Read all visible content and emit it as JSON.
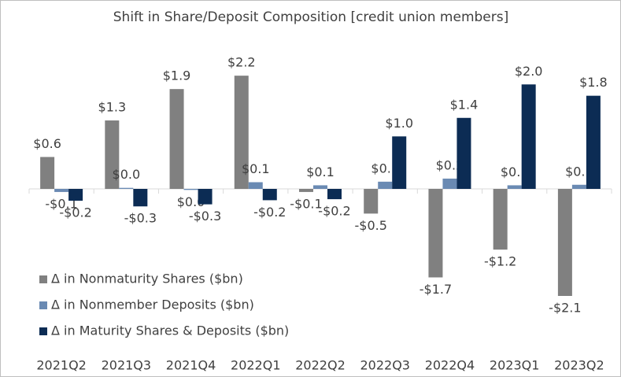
{
  "chart_data": {
    "type": "bar",
    "title": "Shift in Share/Deposit Composition [credit union members]",
    "categories": [
      "2021Q2",
      "2021Q3",
      "2021Q4",
      "2022Q1",
      "2022Q2",
      "2022Q3",
      "2022Q4",
      "2023Q1",
      "2023Q2"
    ],
    "series": [
      {
        "name": "Δ in Nonmaturity Shares ($bn)",
        "color": "#808080",
        "values": [
          0.62,
          1.33,
          1.94,
          2.2,
          -0.06,
          -0.48,
          -1.72,
          -1.18,
          -2.08
        ],
        "value_labels": [
          "$0.6",
          "$1.3",
          "$1.9",
          "$2.2",
          "-$0.1",
          "-$0.5",
          "-$1.7",
          "-$1.2",
          "-$2.1"
        ]
      },
      {
        "name": "Δ in Nonmember Deposits ($bn)",
        "color": "#6a8ab3",
        "values": [
          -0.06,
          0.02,
          -0.02,
          0.13,
          0.07,
          0.14,
          0.2,
          0.07,
          0.08
        ],
        "value_labels": [
          "-$0.1",
          "$0.0",
          "$0.0",
          "$0.1",
          "$0.1",
          "$0.1",
          "$0.2",
          "$0.1",
          "$0.1"
        ]
      },
      {
        "name": "Δ in Maturity Shares & Deposits ($bn)",
        "color": "#0c2c54",
        "values": [
          -0.23,
          -0.34,
          -0.3,
          -0.22,
          -0.2,
          1.02,
          1.38,
          2.03,
          1.81
        ],
        "value_labels": [
          "-$0.2",
          "-$0.3",
          "-$0.3",
          "-$0.2",
          "-$0.2",
          "$1.0",
          "$1.4",
          "$2.0",
          "$1.8"
        ]
      }
    ],
    "ylim": [
      -2.6,
      2.6
    ],
    "legend": "lower-left"
  }
}
